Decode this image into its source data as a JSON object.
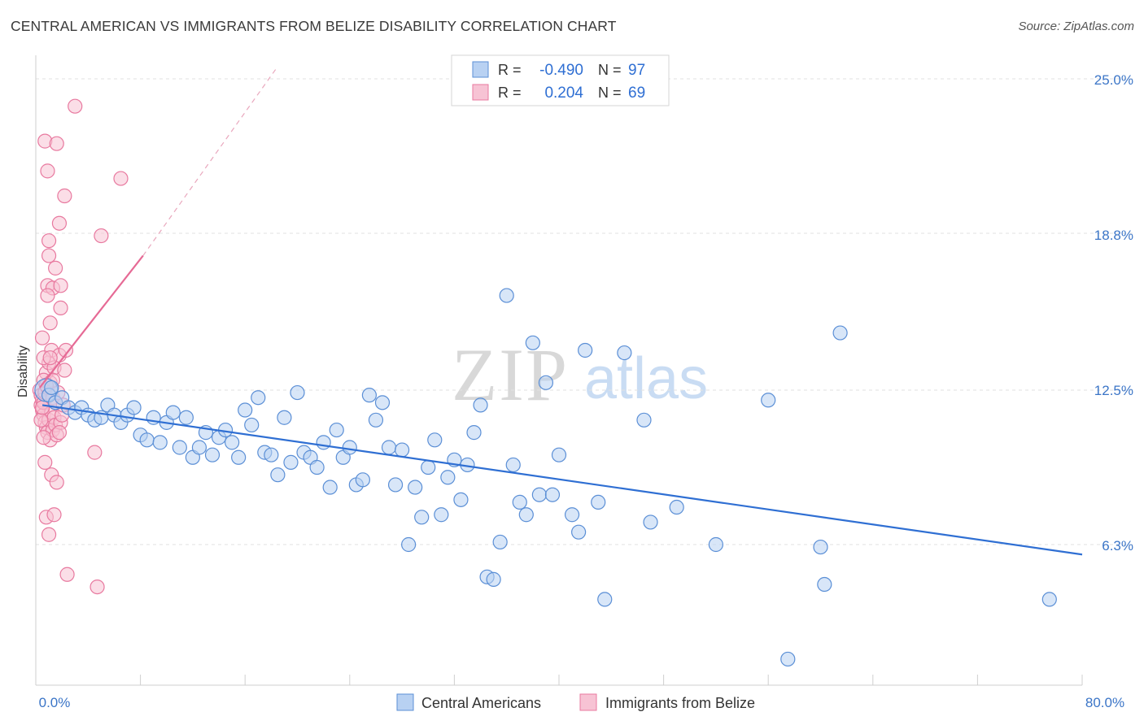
{
  "title": "CENTRAL AMERICAN VS IMMIGRANTS FROM BELIZE DISABILITY CORRELATION CHART",
  "source": "Source: ZipAtlas.com",
  "watermark": {
    "zip": "ZIP",
    "atlas": "atlas"
  },
  "colors": {
    "blue": "#5b8fd6",
    "blue_fill": "#b8d1f2",
    "blue_line": "#2f6fd3",
    "pink": "#e8799f",
    "pink_fill": "#f7c3d4",
    "pink_line": "#e66a95",
    "axis_text": "#3b75c7",
    "grid": "#e2e2e2"
  },
  "legend": {
    "rows": [
      {
        "r_label": "R =",
        "r_value": "-0.490",
        "n_label": "N =",
        "n_value": "97",
        "series": "blue"
      },
      {
        "r_label": "R =",
        "r_value": "0.204",
        "n_label": "N =",
        "n_value": "69",
        "series": "pink"
      }
    ]
  },
  "bottom_legend": [
    "Central Americans",
    "Immigrants from Belize"
  ],
  "chart_data": {
    "type": "scatter",
    "title": "CENTRAL AMERICAN VS IMMIGRANTS FROM BELIZE DISABILITY CORRELATION CHART",
    "xlabel": "",
    "ylabel": "Disability",
    "xlim": [
      0,
      80
    ],
    "ylim": [
      0,
      26.5
    ],
    "x_tick_labels": [
      "0.0%",
      "80.0%"
    ],
    "y_ticks": [
      6.3,
      12.5,
      18.8,
      25.0
    ],
    "y_tick_labels": [
      "6.3%",
      "12.5%",
      "18.8%",
      "25.0%"
    ],
    "grid": true,
    "series": [
      {
        "name": "Central Americans",
        "color": "blue",
        "r": -0.49,
        "n": 97,
        "trend": {
          "x": [
            0.5,
            80
          ],
          "y": [
            11.9,
            5.9
          ]
        },
        "points": [
          [
            0.8,
            12.5
          ],
          [
            1.0,
            12.3
          ],
          [
            1.5,
            12.0
          ],
          [
            2.0,
            12.2
          ],
          [
            2.5,
            11.8
          ],
          [
            3.0,
            11.6
          ],
          [
            3.5,
            11.8
          ],
          [
            4.0,
            11.5
          ],
          [
            4.5,
            11.3
          ],
          [
            5.0,
            11.4
          ],
          [
            5.5,
            11.9
          ],
          [
            6.0,
            11.5
          ],
          [
            6.5,
            11.2
          ],
          [
            7.0,
            11.5
          ],
          [
            7.5,
            11.8
          ],
          [
            8.0,
            10.7
          ],
          [
            8.5,
            10.5
          ],
          [
            9.0,
            11.4
          ],
          [
            9.5,
            10.4
          ],
          [
            10.0,
            11.2
          ],
          [
            10.5,
            11.6
          ],
          [
            11.0,
            10.2
          ],
          [
            11.5,
            11.4
          ],
          [
            12.0,
            9.8
          ],
          [
            12.5,
            10.2
          ],
          [
            13.0,
            10.8
          ],
          [
            13.5,
            9.9
          ],
          [
            14.0,
            10.6
          ],
          [
            14.5,
            10.9
          ],
          [
            15.0,
            10.4
          ],
          [
            15.5,
            9.8
          ],
          [
            16.0,
            11.7
          ],
          [
            16.5,
            11.1
          ],
          [
            17.0,
            12.2
          ],
          [
            17.5,
            10.0
          ],
          [
            18.0,
            9.9
          ],
          [
            18.5,
            9.1
          ],
          [
            19.0,
            11.4
          ],
          [
            19.5,
            9.6
          ],
          [
            20.0,
            12.4
          ],
          [
            20.5,
            10.0
          ],
          [
            21.0,
            9.8
          ],
          [
            21.5,
            9.4
          ],
          [
            22.0,
            10.4
          ],
          [
            22.5,
            8.6
          ],
          [
            23.0,
            10.9
          ],
          [
            23.5,
            9.8
          ],
          [
            24.0,
            10.2
          ],
          [
            24.5,
            8.7
          ],
          [
            25.0,
            8.9
          ],
          [
            25.5,
            12.3
          ],
          [
            26.0,
            11.3
          ],
          [
            26.5,
            12.0
          ],
          [
            27.0,
            10.2
          ],
          [
            27.5,
            8.7
          ],
          [
            28.0,
            10.1
          ],
          [
            28.5,
            6.3
          ],
          [
            29.0,
            8.6
          ],
          [
            29.5,
            7.4
          ],
          [
            30.0,
            9.4
          ],
          [
            30.5,
            10.5
          ],
          [
            31.0,
            7.5
          ],
          [
            31.5,
            9.0
          ],
          [
            32.0,
            9.7
          ],
          [
            32.5,
            8.1
          ],
          [
            33.0,
            9.5
          ],
          [
            33.5,
            10.8
          ],
          [
            34.0,
            11.9
          ],
          [
            34.5,
            5.0
          ],
          [
            35.0,
            4.9
          ],
          [
            35.5,
            6.4
          ],
          [
            36.0,
            16.3
          ],
          [
            36.5,
            9.5
          ],
          [
            37.0,
            8.0
          ],
          [
            37.5,
            7.5
          ],
          [
            38.0,
            14.4
          ],
          [
            38.5,
            8.3
          ],
          [
            39.0,
            12.8
          ],
          [
            39.5,
            8.3
          ],
          [
            40.0,
            9.9
          ],
          [
            41.0,
            7.5
          ],
          [
            41.5,
            6.8
          ],
          [
            42.0,
            14.1
          ],
          [
            43.0,
            8.0
          ],
          [
            43.5,
            4.1
          ],
          [
            45.0,
            14.0
          ],
          [
            46.5,
            11.3
          ],
          [
            47.0,
            7.2
          ],
          [
            49.0,
            7.8
          ],
          [
            52.0,
            6.3
          ],
          [
            56.0,
            12.1
          ],
          [
            57.5,
            1.7
          ],
          [
            60.0,
            6.2
          ],
          [
            60.3,
            4.7
          ],
          [
            61.5,
            14.8
          ],
          [
            77.5,
            4.1
          ],
          [
            1.2,
            12.6
          ]
        ]
      },
      {
        "name": "Immigrants from Belize",
        "color": "pink",
        "r": 0.204,
        "n": 69,
        "trend": {
          "x": [
            0.3,
            8.2
          ],
          "y": [
            12.6,
            17.9
          ]
        },
        "trend_ext": {
          "x": [
            8.2,
            18.5
          ],
          "y": [
            17.9,
            25.5
          ]
        },
        "points": [
          [
            0.3,
            12.5
          ],
          [
            0.4,
            12.3
          ],
          [
            0.4,
            11.9
          ],
          [
            0.5,
            11.7
          ],
          [
            0.5,
            12.1
          ],
          [
            0.6,
            11.5
          ],
          [
            0.6,
            12.0
          ],
          [
            0.7,
            11.2
          ],
          [
            0.7,
            12.4
          ],
          [
            0.8,
            13.2
          ],
          [
            0.8,
            11.0
          ],
          [
            0.9,
            10.8
          ],
          [
            0.9,
            12.6
          ],
          [
            1.0,
            11.3
          ],
          [
            1.0,
            13.6
          ],
          [
            1.1,
            10.5
          ],
          [
            1.1,
            12.8
          ],
          [
            1.2,
            11.6
          ],
          [
            1.2,
            14.1
          ],
          [
            1.3,
            10.9
          ],
          [
            1.3,
            12.2
          ],
          [
            1.4,
            11.4
          ],
          [
            1.4,
            13.4
          ],
          [
            1.5,
            12.0
          ],
          [
            1.5,
            11.1
          ],
          [
            1.6,
            10.7
          ],
          [
            1.7,
            12.4
          ],
          [
            1.8,
            13.9
          ],
          [
            1.9,
            11.2
          ],
          [
            2.0,
            11.5
          ],
          [
            2.2,
            13.3
          ],
          [
            2.3,
            14.1
          ],
          [
            0.5,
            14.6
          ],
          [
            0.6,
            13.8
          ],
          [
            0.7,
            9.6
          ],
          [
            0.8,
            7.4
          ],
          [
            1.0,
            6.7
          ],
          [
            1.2,
            9.1
          ],
          [
            1.4,
            7.5
          ],
          [
            1.6,
            8.8
          ],
          [
            2.4,
            5.1
          ],
          [
            4.7,
            4.6
          ],
          [
            4.5,
            10.0
          ],
          [
            0.7,
            22.5
          ],
          [
            1.6,
            22.4
          ],
          [
            0.9,
            21.3
          ],
          [
            2.2,
            20.3
          ],
          [
            1.8,
            19.2
          ],
          [
            1.0,
            18.5
          ],
          [
            1.0,
            17.9
          ],
          [
            1.5,
            17.4
          ],
          [
            0.9,
            16.7
          ],
          [
            1.3,
            16.6
          ],
          [
            1.9,
            16.7
          ],
          [
            0.9,
            16.3
          ],
          [
            1.9,
            15.8
          ],
          [
            1.1,
            15.2
          ],
          [
            3.0,
            23.9
          ],
          [
            6.5,
            21.0
          ],
          [
            5.0,
            18.7
          ],
          [
            0.6,
            12.9
          ],
          [
            0.4,
            11.3
          ],
          [
            1.8,
            10.8
          ],
          [
            2.1,
            11.9
          ],
          [
            0.6,
            10.6
          ],
          [
            1.3,
            12.9
          ],
          [
            0.5,
            11.8
          ],
          [
            0.8,
            12.7
          ],
          [
            1.1,
            13.8
          ]
        ]
      }
    ]
  }
}
